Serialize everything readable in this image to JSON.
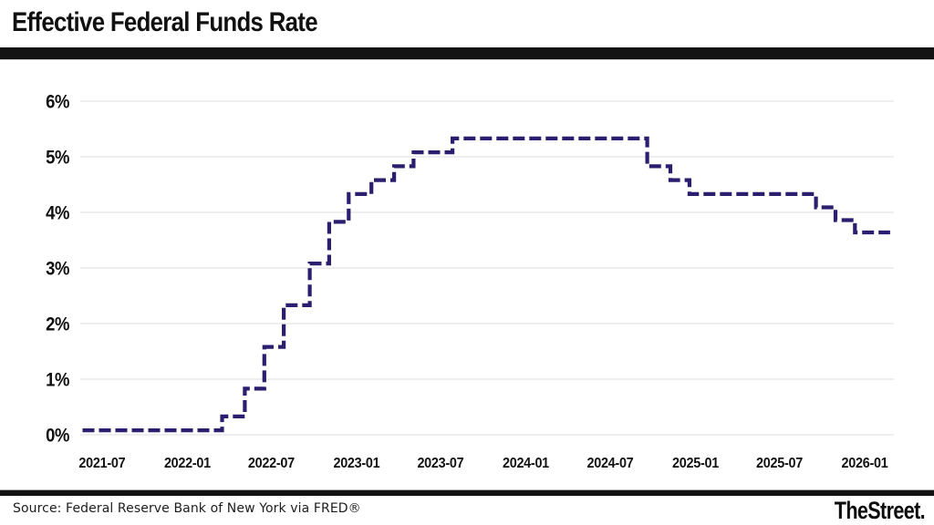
{
  "header": {
    "title": "Effective Federal Funds Rate"
  },
  "chart_data": {
    "type": "line",
    "subtype": "step",
    "line_style": "dashed",
    "title": "Effective Federal Funds Rate",
    "xlabel": "",
    "ylabel": "",
    "ylim": [
      0,
      6
    ],
    "ytick_values": [
      0,
      1,
      2,
      3,
      4,
      5,
      6
    ],
    "ytick_labels": [
      "0%",
      "1%",
      "2%",
      "3%",
      "4%",
      "5%",
      "6%"
    ],
    "xtick_labels": [
      "2021-07",
      "2022-01",
      "2022-07",
      "2023-01",
      "2023-07",
      "2024-01",
      "2024-07",
      "2025-01",
      "2025-07",
      "2026-01"
    ],
    "x_domain": [
      "2021-05-15",
      "2026-03-05"
    ],
    "grid": true,
    "legend": false,
    "line_color": "#2b1e6e",
    "gridline_color": "#e8e8e8",
    "series": [
      {
        "name": "Effective Federal Funds Rate (%)",
        "points": [
          [
            "2021-05-20",
            0.08
          ],
          [
            "2022-03-17",
            0.33
          ],
          [
            "2022-05-05",
            0.83
          ],
          [
            "2022-06-16",
            1.58
          ],
          [
            "2022-07-28",
            2.33
          ],
          [
            "2022-09-22",
            3.08
          ],
          [
            "2022-11-03",
            3.83
          ],
          [
            "2022-12-15",
            4.33
          ],
          [
            "2023-02-02",
            4.58
          ],
          [
            "2023-03-23",
            4.83
          ],
          [
            "2023-05-04",
            5.08
          ],
          [
            "2023-07-27",
            5.33
          ],
          [
            "2024-09-19",
            4.83
          ],
          [
            "2024-11-08",
            4.58
          ],
          [
            "2024-12-19",
            4.33
          ],
          [
            "2025-09-18",
            4.09
          ],
          [
            "2025-10-30",
            3.86
          ],
          [
            "2025-12-11",
            3.64
          ],
          [
            "2026-02-25",
            3.64
          ]
        ]
      }
    ]
  },
  "footer": {
    "source": "Source: Federal Reserve Bank of New York via FRED®",
    "brand": "TheStreet."
  }
}
